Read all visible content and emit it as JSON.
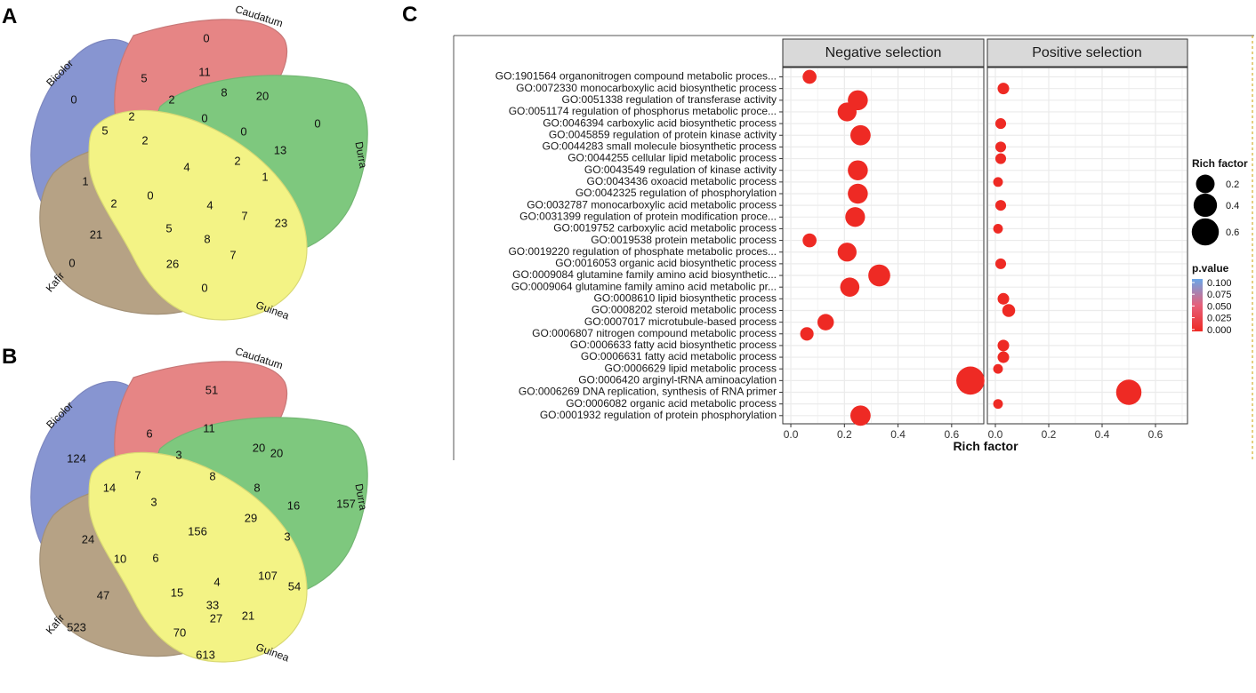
{
  "panels": {
    "a": "A",
    "b": "B",
    "c": "C"
  },
  "colors": {
    "bicolor": "#3f55b6",
    "caudatum": "#d83b3b",
    "durra": "#30a830",
    "kafir": "#8b6a3c",
    "guinea": "#ecec3c",
    "dot": "#ee2a24",
    "strip_bg": "#d9d9d9",
    "grid": "#ebebeb"
  },
  "venn_a": {
    "labels": {
      "caudatum": "Caudatum",
      "bicolor": "Bicolor",
      "durra": "Durra",
      "kafir": "Kafir",
      "guinea": "Guinea"
    },
    "counts": [
      "0",
      "11",
      "5",
      "2",
      "8",
      "20",
      "0",
      "2",
      "0",
      "0",
      "13",
      "5",
      "2",
      "0",
      "4",
      "2",
      "1",
      "1",
      "2",
      "0",
      "4",
      "7",
      "23",
      "21",
      "5",
      "8",
      "7",
      "0",
      "26",
      "0"
    ]
  },
  "venn_b": {
    "labels": {
      "caudatum": "Caudatum",
      "bicolor": "Bicolor",
      "durra": "Durra",
      "kafir": "Kafir",
      "guinea": "Guinea"
    },
    "counts": [
      "51",
      "11",
      "6",
      "3",
      "20",
      "20",
      "124",
      "7",
      "8",
      "8",
      "16",
      "14",
      "3",
      "157",
      "156",
      "29",
      "24",
      "3",
      "10",
      "6",
      "4",
      "107",
      "54",
      "47",
      "15",
      "33",
      "21",
      "27",
      "523",
      "70",
      "613"
    ]
  },
  "chart_data": {
    "type": "scatter",
    "facets": [
      "Negative selection",
      "Positive selection"
    ],
    "categories": [
      "GO:1901564 organonitrogen compound metabolic proces...",
      "GO:0072330 monocarboxylic acid biosynthetic process",
      "GO:0051338 regulation of transferase activity",
      "GO:0051174 regulation of phosphorus metabolic proce...",
      "GO:0046394 carboxylic acid biosynthetic process",
      "GO:0045859 regulation of protein kinase activity",
      "GO:0044283 small molecule biosynthetic process",
      "GO:0044255 cellular lipid metabolic process",
      "GO:0043549 regulation of kinase activity",
      "GO:0043436 oxoacid metabolic process",
      "GO:0042325 regulation of phosphorylation",
      "GO:0032787 monocarboxylic acid metabolic process",
      "GO:0031399 regulation of protein modification proce...",
      "GO:0019752 carboxylic acid metabolic process",
      "GO:0019538 protein metabolic process",
      "GO:0019220 regulation of phosphate metabolic proces...",
      "GO:0016053 organic acid biosynthetic process",
      "GO:0009084 glutamine family amino acid biosynthetic...",
      "GO:0009064 glutamine family amino acid metabolic pr...",
      "GO:0008610 lipid biosynthetic process",
      "GO:0008202 steroid metabolic process",
      "GO:0007017 microtubule-based process",
      "GO:0006807 nitrogen compound metabolic process",
      "GO:0006633 fatty acid biosynthetic process",
      "GO:0006631 fatty acid metabolic process",
      "GO:0006629 lipid metabolic process",
      "GO:0006420 arginyl-tRNA aminoacylation",
      "GO:0006269 DNA replication, synthesis of RNA primer",
      "GO:0006082 organic acid metabolic process",
      "GO:0001932 regulation of protein phosphorylation"
    ],
    "series": [
      {
        "name": "Negative selection",
        "points": [
          {
            "cat": 0,
            "x": 0.07,
            "p": 0.001
          },
          {
            "cat": 2,
            "x": 0.25,
            "p": 0.001
          },
          {
            "cat": 3,
            "x": 0.21,
            "p": 0.001
          },
          {
            "cat": 5,
            "x": 0.26,
            "p": 0.001
          },
          {
            "cat": 8,
            "x": 0.25,
            "p": 0.001
          },
          {
            "cat": 10,
            "x": 0.25,
            "p": 0.001
          },
          {
            "cat": 12,
            "x": 0.24,
            "p": 0.001
          },
          {
            "cat": 14,
            "x": 0.07,
            "p": 0.001
          },
          {
            "cat": 15,
            "x": 0.21,
            "p": 0.001
          },
          {
            "cat": 17,
            "x": 0.33,
            "p": 0.001
          },
          {
            "cat": 18,
            "x": 0.22,
            "p": 0.001
          },
          {
            "cat": 21,
            "x": 0.13,
            "p": 0.001
          },
          {
            "cat": 22,
            "x": 0.06,
            "p": 0.001
          },
          {
            "cat": 26,
            "x": 0.67,
            "p": 0.001
          },
          {
            "cat": 29,
            "x": 0.26,
            "p": 0.001
          }
        ]
      },
      {
        "name": "Positive selection",
        "points": [
          {
            "cat": 1,
            "x": 0.03,
            "p": 0.001
          },
          {
            "cat": 4,
            "x": 0.02,
            "p": 0.001
          },
          {
            "cat": 6,
            "x": 0.02,
            "p": 0.001
          },
          {
            "cat": 7,
            "x": 0.02,
            "p": 0.001
          },
          {
            "cat": 9,
            "x": 0.01,
            "p": 0.001
          },
          {
            "cat": 11,
            "x": 0.02,
            "p": 0.001
          },
          {
            "cat": 13,
            "x": 0.01,
            "p": 0.001
          },
          {
            "cat": 16,
            "x": 0.02,
            "p": 0.001
          },
          {
            "cat": 19,
            "x": 0.03,
            "p": 0.001
          },
          {
            "cat": 20,
            "x": 0.05,
            "p": 0.001
          },
          {
            "cat": 23,
            "x": 0.03,
            "p": 0.001
          },
          {
            "cat": 24,
            "x": 0.03,
            "p": 0.001
          },
          {
            "cat": 25,
            "x": 0.01,
            "p": 0.001
          },
          {
            "cat": 27,
            "x": 0.5,
            "p": 0.001
          },
          {
            "cat": 28,
            "x": 0.01,
            "p": 0.001
          }
        ]
      }
    ],
    "xlim": [
      -0.03,
      0.72
    ],
    "xticks": [
      0.0,
      0.2,
      0.4,
      0.6
    ],
    "xtick_labels": [
      "0.0",
      "0.2",
      "0.4",
      "0.6"
    ],
    "xlabel": "Rich factor",
    "size_legend": {
      "title": "Rich factor",
      "values": [
        0.2,
        0.4,
        0.6
      ],
      "labels": [
        "0.2",
        "0.4",
        "0.6"
      ]
    },
    "color_legend": {
      "title": "p.value",
      "labels": [
        "0.100",
        "0.075",
        "0.050",
        "0.025",
        "0.000"
      ],
      "low_color": "#ee2a24",
      "high_color": "#6aa6e8"
    }
  }
}
